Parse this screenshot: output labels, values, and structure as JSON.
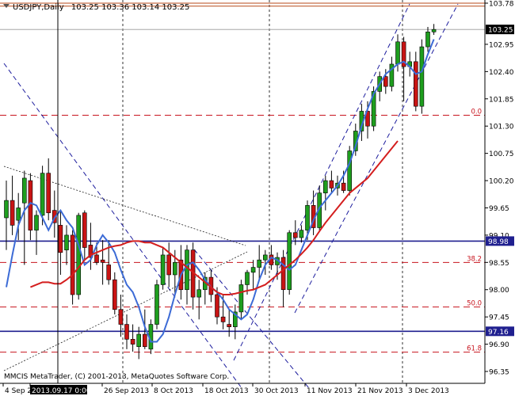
{
  "chart_data": {
    "type": "candlestick",
    "symbol_timeframe": "USDJPY,Daily",
    "ohlc_header": "103.25 103.36 103.14 103.25",
    "copyright": "MMCIS MetaTrader, (C) 2001-2013, MetaQuotes Software Corp.",
    "y_ticks": [
      "103.78",
      "102.95",
      "102.40",
      "101.85",
      "101.30",
      "100.75",
      "100.20",
      "99.65",
      "99.10",
      "98.55",
      "98.00",
      "97.45",
      "96.90",
      "96.35"
    ],
    "y_range": [
      96.35,
      103.78
    ],
    "current_price": "103.25",
    "x_labels": [
      "4 Sep 2013",
      "2013.09.17 0:00",
      "26 Sep 2013",
      "8 Oct 2013",
      "18 Oct 2013",
      "30 Oct 2013",
      "11 Nov 2013",
      "21 Nov 2013",
      "3 Dec 2013"
    ],
    "horizontal_levels": [
      {
        "price": 98.98,
        "label": "98.98",
        "color": "#1f1f8f"
      },
      {
        "price": 97.16,
        "label": "97.16",
        "color": "#1f1f8f"
      }
    ],
    "fibonacci_levels": [
      {
        "label": "0.0",
        "price": 101.52
      },
      {
        "label": "38.2",
        "price": 98.55
      },
      {
        "label": "50.0",
        "price": 97.65
      },
      {
        "label": "61.8",
        "price": 96.74
      }
    ],
    "top_levels": [
      103.78,
      103.72
    ],
    "candles": [
      {
        "o": 99.45,
        "h": 100.2,
        "l": 98.8,
        "c": 99.8
      },
      {
        "o": 99.8,
        "h": 100.3,
        "l": 99.1,
        "c": 99.3
      },
      {
        "o": 99.4,
        "h": 99.95,
        "l": 99.0,
        "c": 99.65
      },
      {
        "o": 99.75,
        "h": 100.4,
        "l": 98.5,
        "c": 100.25
      },
      {
        "o": 100.2,
        "h": 100.35,
        "l": 99.0,
        "c": 99.2
      },
      {
        "o": 99.2,
        "h": 99.6,
        "l": 98.7,
        "c": 99.5
      },
      {
        "o": 99.5,
        "h": 100.5,
        "l": 99.3,
        "c": 100.35
      },
      {
        "o": 100.35,
        "h": 100.65,
        "l": 99.4,
        "c": 99.55
      },
      {
        "o": 99.6,
        "h": 100.0,
        "l": 99.05,
        "c": 99.35
      },
      {
        "o": 99.3,
        "h": 99.6,
        "l": 98.3,
        "c": 98.75
      },
      {
        "o": 98.8,
        "h": 99.3,
        "l": 98.5,
        "c": 99.1
      },
      {
        "o": 99.1,
        "h": 99.2,
        "l": 97.7,
        "c": 97.9
      },
      {
        "o": 97.9,
        "h": 99.55,
        "l": 97.8,
        "c": 99.5
      },
      {
        "o": 99.55,
        "h": 99.6,
        "l": 98.6,
        "c": 98.85
      },
      {
        "o": 98.9,
        "h": 99.35,
        "l": 98.4,
        "c": 98.65
      },
      {
        "o": 98.7,
        "h": 98.95,
        "l": 98.5,
        "c": 98.55
      },
      {
        "o": 98.6,
        "h": 99.0,
        "l": 98.1,
        "c": 98.55
      },
      {
        "o": 98.5,
        "h": 99.0,
        "l": 98.1,
        "c": 98.2
      },
      {
        "o": 98.2,
        "h": 98.35,
        "l": 97.5,
        "c": 97.6
      },
      {
        "o": 97.6,
        "h": 97.9,
        "l": 97.05,
        "c": 97.3
      },
      {
        "o": 97.3,
        "h": 97.5,
        "l": 96.8,
        "c": 97.0
      },
      {
        "o": 97.0,
        "h": 97.3,
        "l": 96.75,
        "c": 96.9
      },
      {
        "o": 96.85,
        "h": 97.25,
        "l": 96.6,
        "c": 97.1
      },
      {
        "o": 97.1,
        "h": 97.6,
        "l": 96.8,
        "c": 96.85
      },
      {
        "o": 96.8,
        "h": 97.4,
        "l": 96.7,
        "c": 97.3
      },
      {
        "o": 97.3,
        "h": 98.2,
        "l": 97.2,
        "c": 98.1
      },
      {
        "o": 98.1,
        "h": 98.85,
        "l": 98.0,
        "c": 98.7
      },
      {
        "o": 98.7,
        "h": 98.95,
        "l": 98.05,
        "c": 98.3
      },
      {
        "o": 98.3,
        "h": 98.8,
        "l": 97.9,
        "c": 98.55
      },
      {
        "o": 98.6,
        "h": 98.9,
        "l": 97.8,
        "c": 98.0
      },
      {
        "o": 98.0,
        "h": 98.9,
        "l": 97.7,
        "c": 98.8
      },
      {
        "o": 98.8,
        "h": 98.95,
        "l": 97.6,
        "c": 97.85
      },
      {
        "o": 97.85,
        "h": 98.2,
        "l": 97.4,
        "c": 98.0
      },
      {
        "o": 98.0,
        "h": 98.35,
        "l": 97.7,
        "c": 98.25
      },
      {
        "o": 98.25,
        "h": 98.4,
        "l": 97.75,
        "c": 97.9
      },
      {
        "o": 97.9,
        "h": 98.05,
        "l": 97.3,
        "c": 97.45
      },
      {
        "o": 97.45,
        "h": 97.9,
        "l": 97.2,
        "c": 97.35
      },
      {
        "o": 97.3,
        "h": 97.6,
        "l": 97.05,
        "c": 97.25
      },
      {
        "o": 97.25,
        "h": 97.7,
        "l": 97.0,
        "c": 97.55
      },
      {
        "o": 97.55,
        "h": 98.2,
        "l": 97.4,
        "c": 98.1
      },
      {
        "o": 98.1,
        "h": 98.4,
        "l": 97.9,
        "c": 98.35
      },
      {
        "o": 98.35,
        "h": 98.6,
        "l": 98.0,
        "c": 98.45
      },
      {
        "o": 98.45,
        "h": 98.9,
        "l": 98.2,
        "c": 98.6
      },
      {
        "o": 98.6,
        "h": 98.8,
        "l": 98.3,
        "c": 98.7
      },
      {
        "o": 98.7,
        "h": 98.9,
        "l": 98.4,
        "c": 98.5
      },
      {
        "o": 98.5,
        "h": 98.75,
        "l": 98.2,
        "c": 98.65
      },
      {
        "o": 98.65,
        "h": 98.8,
        "l": 97.65,
        "c": 98.0
      },
      {
        "o": 98.0,
        "h": 99.2,
        "l": 97.9,
        "c": 99.15
      },
      {
        "o": 99.15,
        "h": 99.4,
        "l": 98.9,
        "c": 99.05
      },
      {
        "o": 99.05,
        "h": 99.3,
        "l": 98.95,
        "c": 99.2
      },
      {
        "o": 99.2,
        "h": 99.8,
        "l": 99.0,
        "c": 99.7
      },
      {
        "o": 99.7,
        "h": 100.0,
        "l": 99.1,
        "c": 99.25
      },
      {
        "o": 99.25,
        "h": 100.1,
        "l": 99.2,
        "c": 99.95
      },
      {
        "o": 99.95,
        "h": 100.3,
        "l": 99.6,
        "c": 100.2
      },
      {
        "o": 100.2,
        "h": 100.4,
        "l": 99.95,
        "c": 100.05
      },
      {
        "o": 100.05,
        "h": 100.3,
        "l": 99.9,
        "c": 100.15
      },
      {
        "o": 100.15,
        "h": 100.4,
        "l": 99.95,
        "c": 100.0
      },
      {
        "o": 100.0,
        "h": 100.9,
        "l": 99.9,
        "c": 100.8
      },
      {
        "o": 100.8,
        "h": 101.35,
        "l": 100.7,
        "c": 101.2
      },
      {
        "o": 101.2,
        "h": 101.75,
        "l": 101.0,
        "c": 101.6
      },
      {
        "o": 101.6,
        "h": 101.8,
        "l": 101.05,
        "c": 101.3
      },
      {
        "o": 101.3,
        "h": 102.1,
        "l": 101.2,
        "c": 102.0
      },
      {
        "o": 102.0,
        "h": 102.4,
        "l": 101.8,
        "c": 102.3
      },
      {
        "o": 102.3,
        "h": 102.45,
        "l": 101.95,
        "c": 102.1
      },
      {
        "o": 102.1,
        "h": 102.7,
        "l": 102.0,
        "c": 102.55
      },
      {
        "o": 102.55,
        "h": 103.15,
        "l": 102.4,
        "c": 103.0
      },
      {
        "o": 103.0,
        "h": 103.1,
        "l": 101.8,
        "c": 102.5
      },
      {
        "o": 102.5,
        "h": 102.8,
        "l": 102.3,
        "c": 102.6
      },
      {
        "o": 102.6,
        "h": 102.8,
        "l": 101.6,
        "c": 101.7
      },
      {
        "o": 101.7,
        "h": 103.05,
        "l": 101.55,
        "c": 102.9
      },
      {
        "o": 102.9,
        "h": 103.3,
        "l": 102.8,
        "c": 103.2
      },
      {
        "o": 103.2,
        "h": 103.36,
        "l": 103.14,
        "c": 103.25
      }
    ],
    "ma_fast": [
      98.05,
      98.7,
      99.3,
      99.6,
      99.75,
      99.7,
      99.45,
      99.2,
      99.45,
      99.6,
      99.4,
      99.25,
      98.9,
      98.5,
      98.6,
      98.9,
      99.1,
      98.95,
      98.75,
      98.4,
      98.1,
      97.95,
      97.65,
      97.25,
      96.95,
      96.95,
      97.1,
      97.45,
      97.9,
      98.3,
      98.5,
      98.55,
      98.4,
      98.2,
      98.05,
      97.95,
      97.8,
      97.6,
      97.5,
      97.4,
      97.5,
      97.8,
      98.2,
      98.5,
      98.65,
      98.6,
      98.5,
      98.4,
      98.5,
      98.8,
      99.1,
      99.4,
      99.65,
      99.8,
      99.95,
      100.1,
      100.3,
      100.55,
      100.9,
      101.3,
      101.65,
      101.95,
      102.15,
      102.35,
      102.45,
      102.55,
      102.6,
      102.5,
      102.35,
      102.4,
      102.75,
      103.05
    ],
    "ma_slow": [
      98.05,
      98.1,
      98.15,
      98.15,
      98.12,
      98.12,
      98.2,
      98.3,
      98.45,
      98.6,
      98.7,
      98.75,
      98.8,
      98.85,
      98.88,
      98.9,
      98.95,
      98.98,
      98.98,
      98.95,
      98.95,
      98.9,
      98.85,
      98.75,
      98.65,
      98.55,
      98.45,
      98.35,
      98.25,
      98.15,
      98.05,
      97.95,
      97.9,
      97.9,
      97.92,
      97.95,
      97.98,
      98.0,
      98.05,
      98.1,
      98.2,
      98.3,
      98.4,
      98.5,
      98.6,
      98.72,
      98.85,
      99.0,
      99.18,
      99.35,
      99.5,
      99.65,
      99.8,
      99.95,
      100.05,
      100.15,
      100.25,
      100.4,
      100.55,
      100.7,
      100.85,
      101.0
    ]
  }
}
